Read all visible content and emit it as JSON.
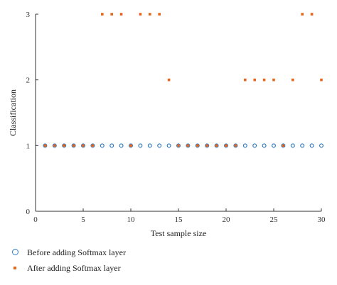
{
  "chart_data": {
    "type": "scatter",
    "title": "",
    "xlabel": "Test sample size",
    "ylabel": "Classification",
    "xlim": [
      0,
      30
    ],
    "ylim": [
      0,
      3
    ],
    "xticks": [
      "0",
      "5",
      "10",
      "15",
      "20",
      "25",
      "30"
    ],
    "yticks": [
      "0",
      "1",
      "2",
      "3"
    ],
    "grid": false,
    "legend_position": "bottom-left",
    "series": [
      {
        "name": "Before adding Softmax layer",
        "marker": "circle",
        "color": "#2f7bc4",
        "x": [
          1,
          2,
          3,
          4,
          5,
          6,
          7,
          8,
          9,
          10,
          11,
          12,
          13,
          14,
          15,
          16,
          17,
          18,
          19,
          20,
          21,
          22,
          23,
          24,
          25,
          26,
          27,
          28,
          29,
          30
        ],
        "y": [
          1,
          1,
          1,
          1,
          1,
          1,
          1,
          1,
          1,
          1,
          1,
          1,
          1,
          1,
          1,
          1,
          1,
          1,
          1,
          1,
          1,
          1,
          1,
          1,
          1,
          1,
          1,
          1,
          1,
          1
        ]
      },
      {
        "name": "After adding Softmax layer",
        "marker": "square",
        "color": "#e8651c",
        "x": [
          1,
          2,
          3,
          4,
          5,
          6,
          7,
          8,
          9,
          10,
          11,
          12,
          13,
          14,
          15,
          16,
          17,
          18,
          19,
          20,
          21,
          22,
          23,
          24,
          25,
          26,
          27,
          28,
          29,
          30
        ],
        "y": [
          1,
          1,
          1,
          1,
          1,
          1,
          3,
          3,
          3,
          1,
          3,
          3,
          3,
          2,
          1,
          1,
          1,
          1,
          1,
          1,
          1,
          2,
          2,
          2,
          2,
          1,
          2,
          3,
          3,
          2
        ]
      }
    ]
  },
  "legend": {
    "items": [
      {
        "label": "Before adding Softmax layer"
      },
      {
        "label": "After adding Softmax layer"
      }
    ]
  }
}
